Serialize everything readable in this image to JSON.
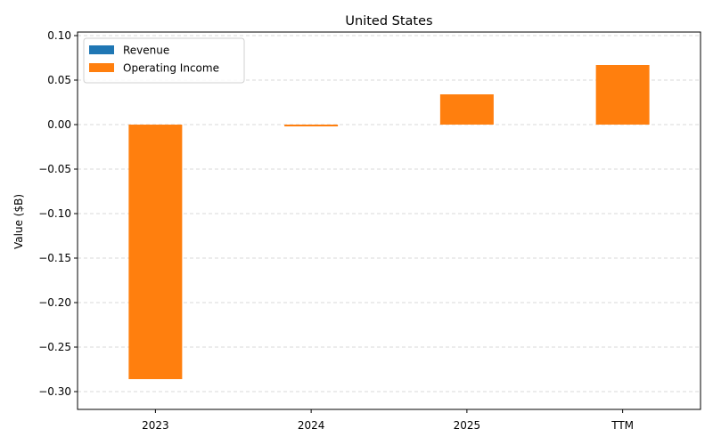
{
  "chart_data": {
    "type": "bar",
    "title": "United States",
    "xlabel": "",
    "ylabel": "Value ($B)",
    "categories": [
      "2023",
      "2024",
      "2025",
      "TTM"
    ],
    "series": [
      {
        "name": "Revenue",
        "color": "#1f77b4",
        "values": [
          0,
          0,
          0,
          0
        ]
      },
      {
        "name": "Operating Income",
        "color": "#ff7f0e",
        "values": [
          -0.286,
          -0.002,
          0.034,
          0.067
        ]
      }
    ],
    "ylim": [
      -0.32,
      0.104
    ],
    "yticks": [
      -0.3,
      -0.25,
      -0.2,
      -0.15,
      -0.1,
      -0.05,
      0.0,
      0.05,
      0.1
    ],
    "ytick_labels": [
      "−0.30",
      "−0.25",
      "−0.20",
      "−0.15",
      "−0.10",
      "−0.05",
      "0.00",
      "0.05",
      "0.10"
    ],
    "grid": "y-dashed",
    "legend_position": "top-left"
  }
}
